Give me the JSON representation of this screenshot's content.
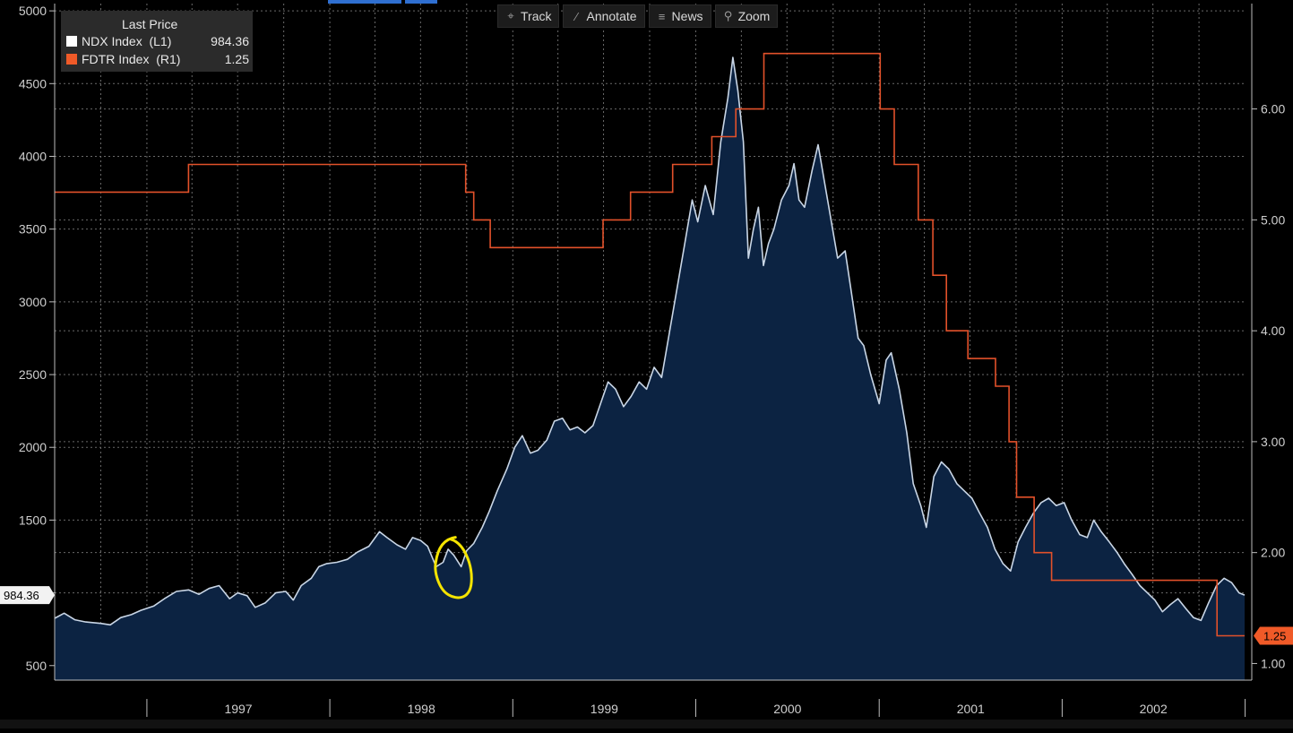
{
  "toolbar": {
    "track_label": "Track",
    "annotate_label": "Annotate",
    "news_label": "News",
    "zoom_label": "Zoom",
    "track_icon": "crosshair-icon",
    "annotate_icon": "pencil-icon",
    "news_icon": "news-icon",
    "zoom_icon": "magnifier-icon"
  },
  "legend": {
    "title": "Last Price",
    "series": [
      {
        "name": "NDX Index  (L1)",
        "value": "984.36",
        "color": "#ffffff"
      },
      {
        "name": "FDTR Index  (R1)",
        "value": "1.25",
        "color": "#f05a28"
      }
    ]
  },
  "left_tag": "984.36",
  "right_tag": "1.25",
  "colors": {
    "ndx_line": "#c9d6e6",
    "ndx_fill": "#0c2342",
    "fdtr_line": "#e2512a",
    "grid": "#6a6a6a",
    "annotation": "#f5e400",
    "tag_orange": "#f05a28"
  },
  "chart_data": {
    "type": "line",
    "x_range": [
      "1996-07-01",
      "2002-12-31"
    ],
    "x_ticks": [
      "1997",
      "1998",
      "1999",
      "2000",
      "2001",
      "2002"
    ],
    "left_axis": {
      "ylim": [
        400,
        5050
      ],
      "ticks": [
        500,
        1000,
        1500,
        2000,
        2500,
        3000,
        3500,
        4000,
        4500,
        5000
      ]
    },
    "right_axis": {
      "ylim": [
        0.85,
        6.95
      ],
      "ticks": [
        "1.00",
        "2.00",
        "3.00",
        "4.00",
        "5.00",
        "6.00"
      ]
    },
    "grid": true,
    "legend_position": "top-left",
    "series": [
      {
        "name": "NDX Index",
        "axis": "left",
        "style": "area",
        "points": [
          [
            "1996-07-01",
            825
          ],
          [
            "1996-07-20",
            860
          ],
          [
            "1996-08-10",
            815
          ],
          [
            "1996-09-01",
            800
          ],
          [
            "1996-10-01",
            790
          ],
          [
            "1996-10-20",
            780
          ],
          [
            "1996-11-10",
            830
          ],
          [
            "1996-12-01",
            850
          ],
          [
            "1996-12-20",
            880
          ],
          [
            "1997-01-15",
            910
          ],
          [
            "1997-02-05",
            960
          ],
          [
            "1997-03-01",
            1010
          ],
          [
            "1997-03-25",
            1020
          ],
          [
            "1997-04-15",
            990
          ],
          [
            "1997-05-05",
            1030
          ],
          [
            "1997-05-25",
            1050
          ],
          [
            "1997-06-15",
            960
          ],
          [
            "1997-07-01",
            1000
          ],
          [
            "1997-07-20",
            980
          ],
          [
            "1997-08-05",
            900
          ],
          [
            "1997-08-25",
            930
          ],
          [
            "1997-09-15",
            1000
          ],
          [
            "1997-10-05",
            1010
          ],
          [
            "1997-10-20",
            950
          ],
          [
            "1997-11-05",
            1050
          ],
          [
            "1997-11-25",
            1100
          ],
          [
            "1997-12-10",
            1180
          ],
          [
            "1997-12-25",
            1200
          ],
          [
            "1998-01-15",
            1210
          ],
          [
            "1998-02-05",
            1230
          ],
          [
            "1998-02-25",
            1280
          ],
          [
            "1998-03-20",
            1320
          ],
          [
            "1998-04-10",
            1420
          ],
          [
            "1998-04-25",
            1380
          ],
          [
            "1998-05-15",
            1330
          ],
          [
            "1998-06-01",
            1300
          ],
          [
            "1998-06-15",
            1380
          ],
          [
            "1998-07-01",
            1360
          ],
          [
            "1998-07-15",
            1320
          ],
          [
            "1998-08-01",
            1180
          ],
          [
            "1998-08-15",
            1210
          ],
          [
            "1998-08-25",
            1300
          ],
          [
            "1998-09-05",
            1260
          ],
          [
            "1998-09-20",
            1180
          ],
          [
            "1998-10-01",
            1290
          ],
          [
            "1998-10-15",
            1340
          ],
          [
            "1998-11-01",
            1450
          ],
          [
            "1998-11-15",
            1560
          ],
          [
            "1998-12-01",
            1700
          ],
          [
            "1998-12-20",
            1850
          ],
          [
            "1999-01-05",
            2000
          ],
          [
            "1999-01-20",
            2080
          ],
          [
            "1999-02-05",
            1960
          ],
          [
            "1999-02-20",
            1980
          ],
          [
            "1999-03-10",
            2050
          ],
          [
            "1999-03-25",
            2180
          ],
          [
            "1999-04-10",
            2200
          ],
          [
            "1999-04-25",
            2120
          ],
          [
            "1999-05-10",
            2140
          ],
          [
            "1999-05-25",
            2100
          ],
          [
            "1999-06-10",
            2150
          ],
          [
            "1999-06-25",
            2300
          ],
          [
            "1999-07-10",
            2450
          ],
          [
            "1999-07-25",
            2400
          ],
          [
            "1999-08-10",
            2280
          ],
          [
            "1999-08-25",
            2350
          ],
          [
            "1999-09-10",
            2450
          ],
          [
            "1999-09-25",
            2400
          ],
          [
            "1999-10-10",
            2550
          ],
          [
            "1999-10-25",
            2480
          ],
          [
            "1999-11-10",
            2800
          ],
          [
            "1999-11-25",
            3100
          ],
          [
            "1999-12-10",
            3400
          ],
          [
            "1999-12-25",
            3700
          ],
          [
            "2000-01-05",
            3550
          ],
          [
            "2000-01-20",
            3800
          ],
          [
            "2000-02-05",
            3600
          ],
          [
            "2000-02-20",
            4100
          ],
          [
            "2000-03-05",
            4400
          ],
          [
            "2000-03-15",
            4680
          ],
          [
            "2000-03-25",
            4450
          ],
          [
            "2000-04-05",
            4100
          ],
          [
            "2000-04-15",
            3300
          ],
          [
            "2000-04-25",
            3500
          ],
          [
            "2000-05-05",
            3650
          ],
          [
            "2000-05-15",
            3250
          ],
          [
            "2000-05-25",
            3400
          ],
          [
            "2000-06-05",
            3500
          ],
          [
            "2000-06-20",
            3700
          ],
          [
            "2000-07-05",
            3800
          ],
          [
            "2000-07-15",
            3950
          ],
          [
            "2000-07-25",
            3700
          ],
          [
            "2000-08-05",
            3650
          ],
          [
            "2000-08-20",
            3900
          ],
          [
            "2000-09-01",
            4080
          ],
          [
            "2000-09-15",
            3800
          ],
          [
            "2000-09-25",
            3600
          ],
          [
            "2000-10-10",
            3300
          ],
          [
            "2000-10-25",
            3350
          ],
          [
            "2000-11-05",
            3100
          ],
          [
            "2000-11-20",
            2750
          ],
          [
            "2000-12-01",
            2700
          ],
          [
            "2000-12-15",
            2500
          ],
          [
            "2001-01-01",
            2300
          ],
          [
            "2001-01-15",
            2600
          ],
          [
            "2001-01-25",
            2650
          ],
          [
            "2001-02-10",
            2400
          ],
          [
            "2001-02-25",
            2100
          ],
          [
            "2001-03-10",
            1750
          ],
          [
            "2001-03-25",
            1600
          ],
          [
            "2001-04-05",
            1450
          ],
          [
            "2001-04-20",
            1800
          ],
          [
            "2001-05-05",
            1900
          ],
          [
            "2001-05-20",
            1850
          ],
          [
            "2001-06-05",
            1750
          ],
          [
            "2001-06-20",
            1700
          ],
          [
            "2001-07-05",
            1650
          ],
          [
            "2001-07-20",
            1550
          ],
          [
            "2001-08-05",
            1450
          ],
          [
            "2001-08-20",
            1300
          ],
          [
            "2001-09-05",
            1200
          ],
          [
            "2001-09-20",
            1150
          ],
          [
            "2001-10-05",
            1350
          ],
          [
            "2001-10-20",
            1450
          ],
          [
            "2001-11-05",
            1550
          ],
          [
            "2001-11-20",
            1620
          ],
          [
            "2001-12-05",
            1650
          ],
          [
            "2001-12-20",
            1600
          ],
          [
            "2002-01-05",
            1620
          ],
          [
            "2002-01-20",
            1500
          ],
          [
            "2002-02-05",
            1400
          ],
          [
            "2002-02-20",
            1380
          ],
          [
            "2002-03-05",
            1500
          ],
          [
            "2002-03-20",
            1420
          ],
          [
            "2002-04-05",
            1350
          ],
          [
            "2002-04-20",
            1280
          ],
          [
            "2002-05-05",
            1200
          ],
          [
            "2002-05-20",
            1130
          ],
          [
            "2002-06-05",
            1050
          ],
          [
            "2002-06-20",
            1000
          ],
          [
            "2002-07-05",
            950
          ],
          [
            "2002-07-20",
            870
          ],
          [
            "2002-08-05",
            920
          ],
          [
            "2002-08-20",
            960
          ],
          [
            "2002-09-05",
            890
          ],
          [
            "2002-09-20",
            830
          ],
          [
            "2002-10-05",
            810
          ],
          [
            "2002-10-20",
            930
          ],
          [
            "2002-11-05",
            1050
          ],
          [
            "2002-11-20",
            1100
          ],
          [
            "2002-12-05",
            1070
          ],
          [
            "2002-12-20",
            1000
          ],
          [
            "2002-12-31",
            984.36
          ]
        ]
      },
      {
        "name": "FDTR Index",
        "axis": "right",
        "style": "step",
        "points": [
          [
            "1996-07-01",
            5.25
          ],
          [
            "1997-03-25",
            5.5
          ],
          [
            "1998-09-29",
            5.25
          ],
          [
            "1998-10-15",
            5.0
          ],
          [
            "1998-11-17",
            4.75
          ],
          [
            "1999-06-30",
            5.0
          ],
          [
            "1999-08-24",
            5.25
          ],
          [
            "1999-11-16",
            5.5
          ],
          [
            "2000-02-02",
            5.75
          ],
          [
            "2000-03-21",
            6.0
          ],
          [
            "2000-05-16",
            6.5
          ],
          [
            "2001-01-03",
            6.0
          ],
          [
            "2001-01-31",
            5.5
          ],
          [
            "2001-03-20",
            5.0
          ],
          [
            "2001-04-18",
            4.5
          ],
          [
            "2001-05-15",
            4.0
          ],
          [
            "2001-06-27",
            3.75
          ],
          [
            "2001-08-21",
            3.5
          ],
          [
            "2001-09-17",
            3.0
          ],
          [
            "2001-10-02",
            2.5
          ],
          [
            "2001-11-06",
            2.0
          ],
          [
            "2001-12-11",
            1.75
          ],
          [
            "2002-11-06",
            1.25
          ],
          [
            "2002-12-31",
            1.25
          ]
        ]
      }
    ]
  }
}
